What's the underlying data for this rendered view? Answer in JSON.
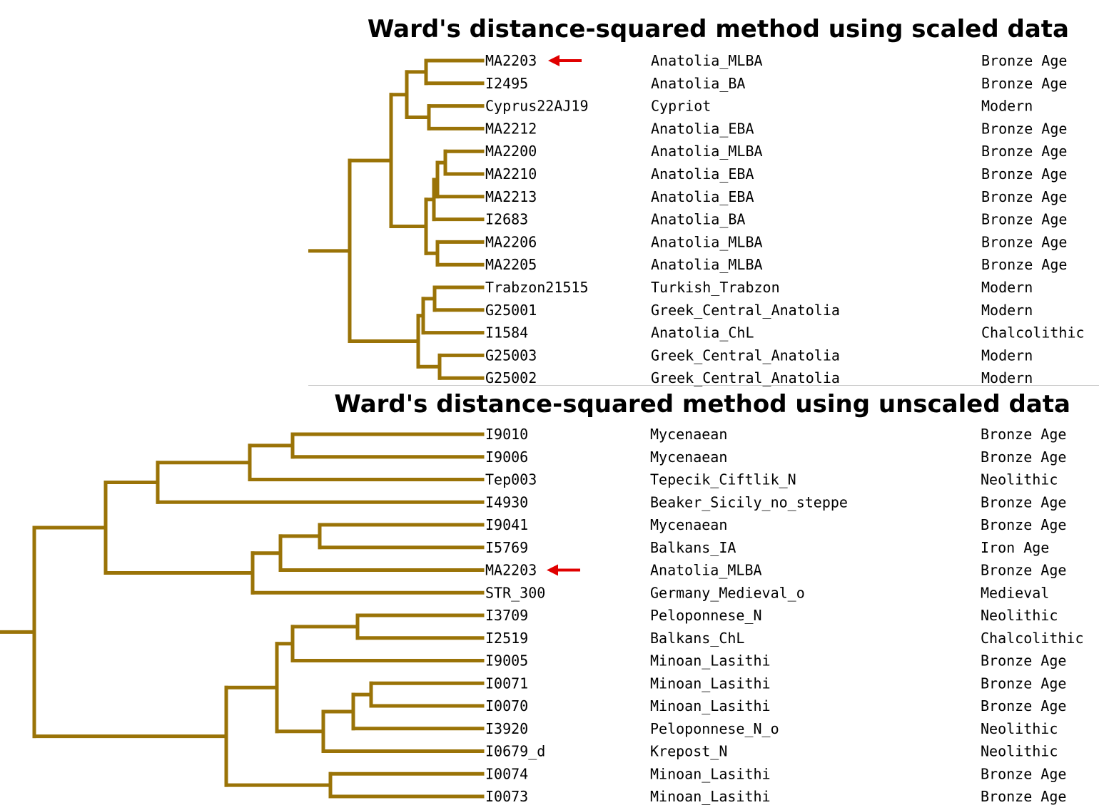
{
  "colors": {
    "branch": "#9a7307",
    "arrow": "#e00000",
    "text": "#000000"
  },
  "panels": [
    {
      "title": "Ward's distance-squared method using scaled data",
      "leaves": [
        {
          "id": "MA2203",
          "population": "Anatolia_MLBA",
          "period": "Bronze Age",
          "highlight": true
        },
        {
          "id": "I2495",
          "population": "Anatolia_BA",
          "period": "Bronze Age"
        },
        {
          "id": "Cyprus22AJ19",
          "population": "Cypriot",
          "period": "Modern"
        },
        {
          "id": "MA2212",
          "population": "Anatolia_EBA",
          "period": "Bronze Age"
        },
        {
          "id": "MA2200",
          "population": "Anatolia_MLBA",
          "period": "Bronze Age"
        },
        {
          "id": "MA2210",
          "population": "Anatolia_EBA",
          "period": "Bronze Age"
        },
        {
          "id": "MA2213",
          "population": "Anatolia_EBA",
          "period": "Bronze Age"
        },
        {
          "id": "I2683",
          "population": "Anatolia_BA",
          "period": "Bronze Age"
        },
        {
          "id": "MA2206",
          "population": "Anatolia_MLBA",
          "period": "Bronze Age"
        },
        {
          "id": "MA2205",
          "population": "Anatolia_MLBA",
          "period": "Bronze Age"
        },
        {
          "id": "Trabzon21515",
          "population": "Turkish_Trabzon",
          "period": "Modern"
        },
        {
          "id": "G25001",
          "population": "Greek_Central_Anatolia",
          "period": "Modern"
        },
        {
          "id": "I1584",
          "population": "Anatolia_ChL",
          "period": "Chalcolithic"
        },
        {
          "id": "G25003",
          "population": "Greek_Central_Anatolia",
          "period": "Modern"
        },
        {
          "id": "G25002",
          "population": "Greek_Central_Anatolia",
          "period": "Modern"
        }
      ]
    },
    {
      "title": "Ward's distance-squared method using unscaled data",
      "leaves": [
        {
          "id": "I9010",
          "population": "Mycenaean",
          "period": "Bronze Age"
        },
        {
          "id": "I9006",
          "population": "Mycenaean",
          "period": "Bronze Age"
        },
        {
          "id": "Tep003",
          "population": "Tepecik_Ciftlik_N",
          "period": "Neolithic"
        },
        {
          "id": "I4930",
          "population": "Beaker_Sicily_no_steppe",
          "period": "Bronze Age"
        },
        {
          "id": "I9041",
          "population": "Mycenaean",
          "period": "Bronze Age"
        },
        {
          "id": "I5769",
          "population": "Balkans_IA",
          "period": "Iron Age"
        },
        {
          "id": "MA2203",
          "population": "Anatolia_MLBA",
          "period": "Bronze Age",
          "highlight": true
        },
        {
          "id": "STR_300",
          "population": "Germany_Medieval_o",
          "period": "Medieval"
        },
        {
          "id": "I3709",
          "population": "Peloponnese_N",
          "period": "Neolithic"
        },
        {
          "id": "I2519",
          "population": "Balkans_ChL",
          "period": "Chalcolithic"
        },
        {
          "id": "I9005",
          "population": "Minoan_Lasithi",
          "period": "Bronze Age"
        },
        {
          "id": "I0071",
          "population": "Minoan_Lasithi",
          "period": "Bronze Age"
        },
        {
          "id": "I0070",
          "population": "Minoan_Lasithi",
          "period": "Bronze Age"
        },
        {
          "id": "I3920",
          "population": "Peloponnese_N_o",
          "period": "Neolithic"
        },
        {
          "id": "I0679_d",
          "population": "Krepost_N",
          "period": "Neolithic"
        },
        {
          "id": "I0074",
          "population": "Minoan_Lasithi",
          "period": "Bronze Age"
        },
        {
          "id": "I0073",
          "population": "Minoan_Lasithi",
          "period": "Bronze Age"
        }
      ]
    }
  ]
}
